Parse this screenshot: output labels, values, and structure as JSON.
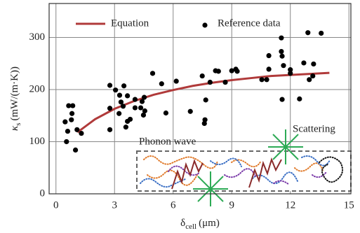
{
  "chart_data": {
    "type": "line",
    "xlabel": {
      "symbol": "δ",
      "subscript": "cell",
      "unit": "(μm)"
    },
    "ylabel": {
      "symbol": "κ",
      "subscript": "s",
      "unit": "(mW/(m·K))"
    },
    "xlim": [
      -0.35,
      15.1
    ],
    "xticks": [
      0,
      3,
      6,
      9,
      12,
      15
    ],
    "ylim": [
      0,
      365
    ],
    "yticks": [
      0,
      100,
      200,
      300
    ],
    "grid": true,
    "annotations": [
      "Phonon wave",
      "Scattering"
    ],
    "series": [
      {
        "name": "Equation",
        "type": "line",
        "color": "#b03a3a",
        "x": [
          1.1,
          2,
          3,
          4,
          5,
          6,
          7,
          8,
          9,
          10,
          11,
          12,
          13,
          14
        ],
        "values": [
          118,
          143,
          163,
          178,
          190,
          199,
          207,
          213,
          218,
          222,
          226,
          228,
          230,
          232
        ]
      },
      {
        "name": "Reference data",
        "type": "scatter",
        "color": "#000000",
        "x": [
          0.47,
          0.6,
          0.54,
          0.65,
          0.86,
          0.82,
          0.79,
          1.0,
          1.08,
          1.3,
          2.76,
          2.76,
          2.76,
          3.05,
          3.26,
          3.33,
          3.48,
          3.66,
          3.44,
          3.23,
          3.66,
          3.58,
          3.8,
          4.05,
          4.05,
          4.34,
          4.41,
          4.55,
          4.48,
          4.52,
          4.95,
          5.41,
          5.63,
          6.16,
          6.88,
          7.49,
          7.6,
          7.63,
          7.67,
          7.89,
          8.17,
          8.32,
          8.67,
          9.0,
          9.28,
          9.21,
          10.54,
          10.79,
          10.9,
          10.9,
          11.54,
          11.54,
          11.58,
          11.58,
          11.65,
          12.0,
          12.0,
          12.47,
          12.9,
          13.58,
          12.69,
          13.19,
          13.15,
          12.97
        ],
        "values": [
          138,
          120,
          100,
          169,
          169,
          154,
          142,
          84,
          123,
          116,
          208,
          164,
          123,
          199,
          189,
          176,
          207,
          188,
          168,
          154,
          139,
          128,
          143,
          165,
          181,
          165,
          177,
          159,
          151,
          185,
          231,
          211,
          155,
          216,
          158,
          226,
          135,
          142,
          180,
          214,
          236,
          235,
          214,
          236,
          235,
          239,
          219,
          219,
          265,
          239,
          299,
          273,
          264,
          181,
          246,
          238,
          231,
          182,
          309,
          308,
          251,
          249,
          226,
          219
        ]
      }
    ]
  }
}
